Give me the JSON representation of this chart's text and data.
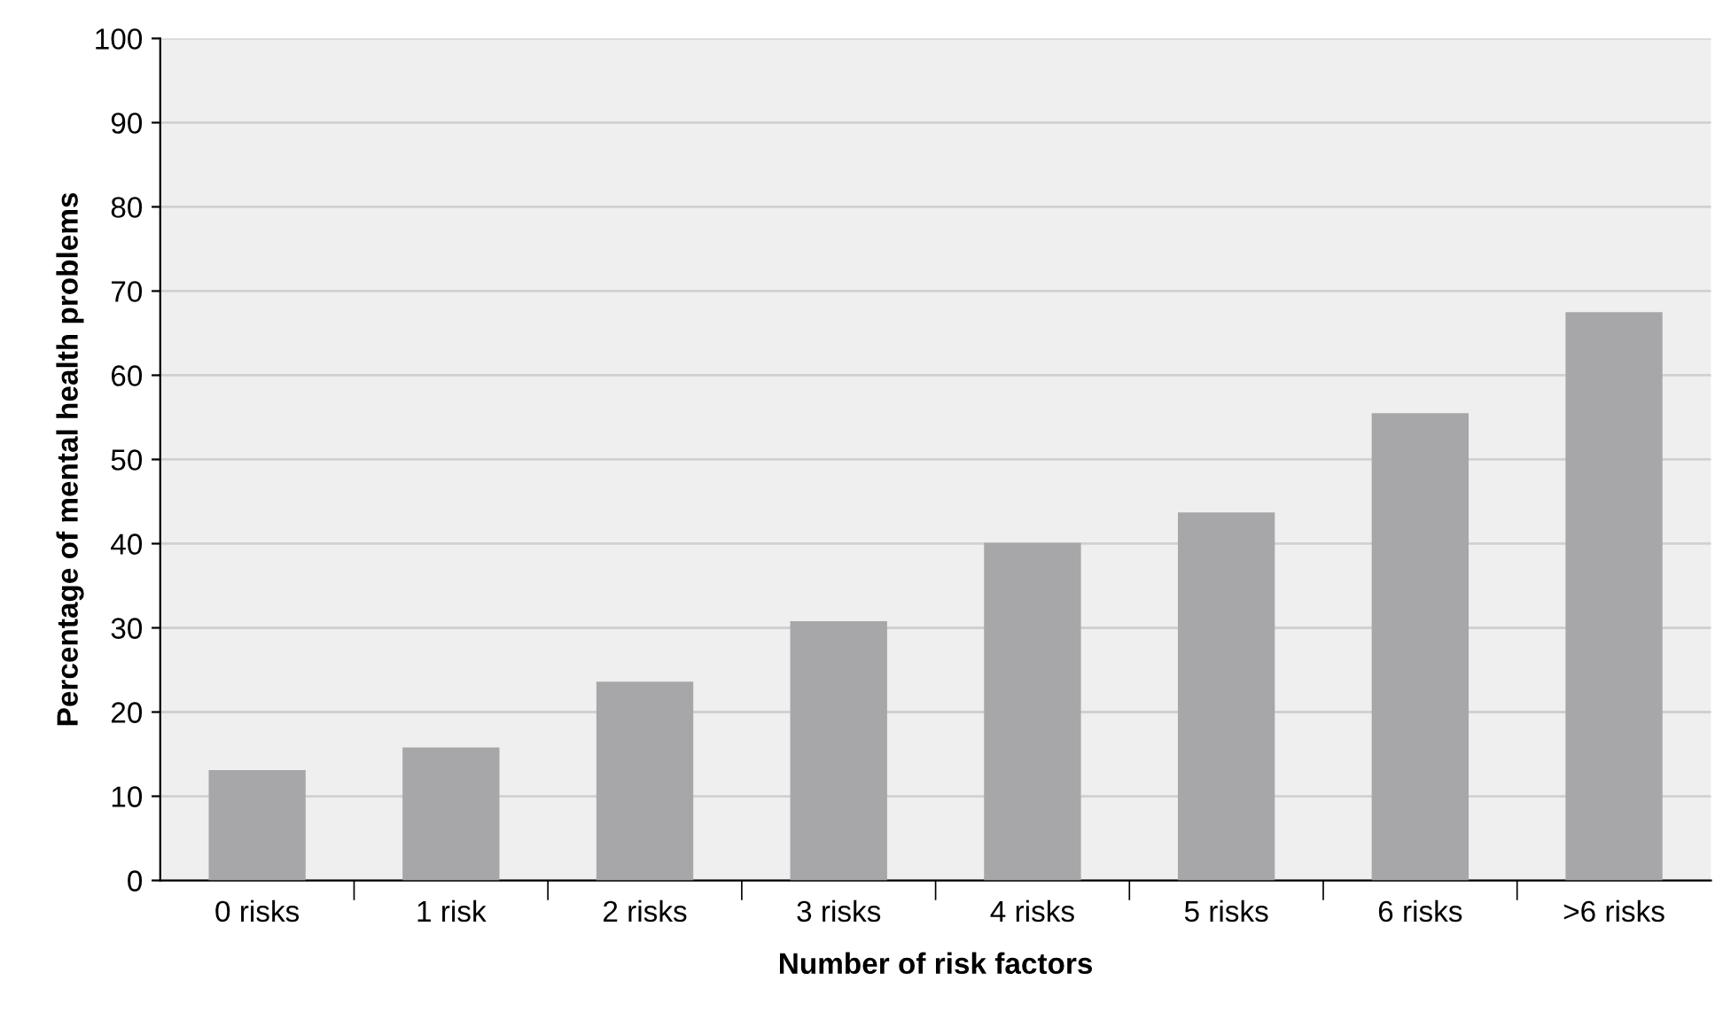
{
  "chart_data": {
    "type": "bar",
    "xlabel": "Number of risk factors",
    "ylabel": "Percentage of mental health problems",
    "categories": [
      "0 risks",
      "1 risk",
      "2 risks",
      "3 risks",
      "4 risks",
      "5 risks",
      "6 risks",
      ">6 risks"
    ],
    "values": [
      13.1,
      15.8,
      23.6,
      30.8,
      40.1,
      43.7,
      55.5,
      67.5
    ],
    "color": "#a7a7a9",
    "ylim": [
      0,
      100
    ],
    "yticks": [
      0,
      10,
      20,
      30,
      40,
      50,
      60,
      70,
      80,
      90,
      100
    ],
    "grid": "y"
  }
}
